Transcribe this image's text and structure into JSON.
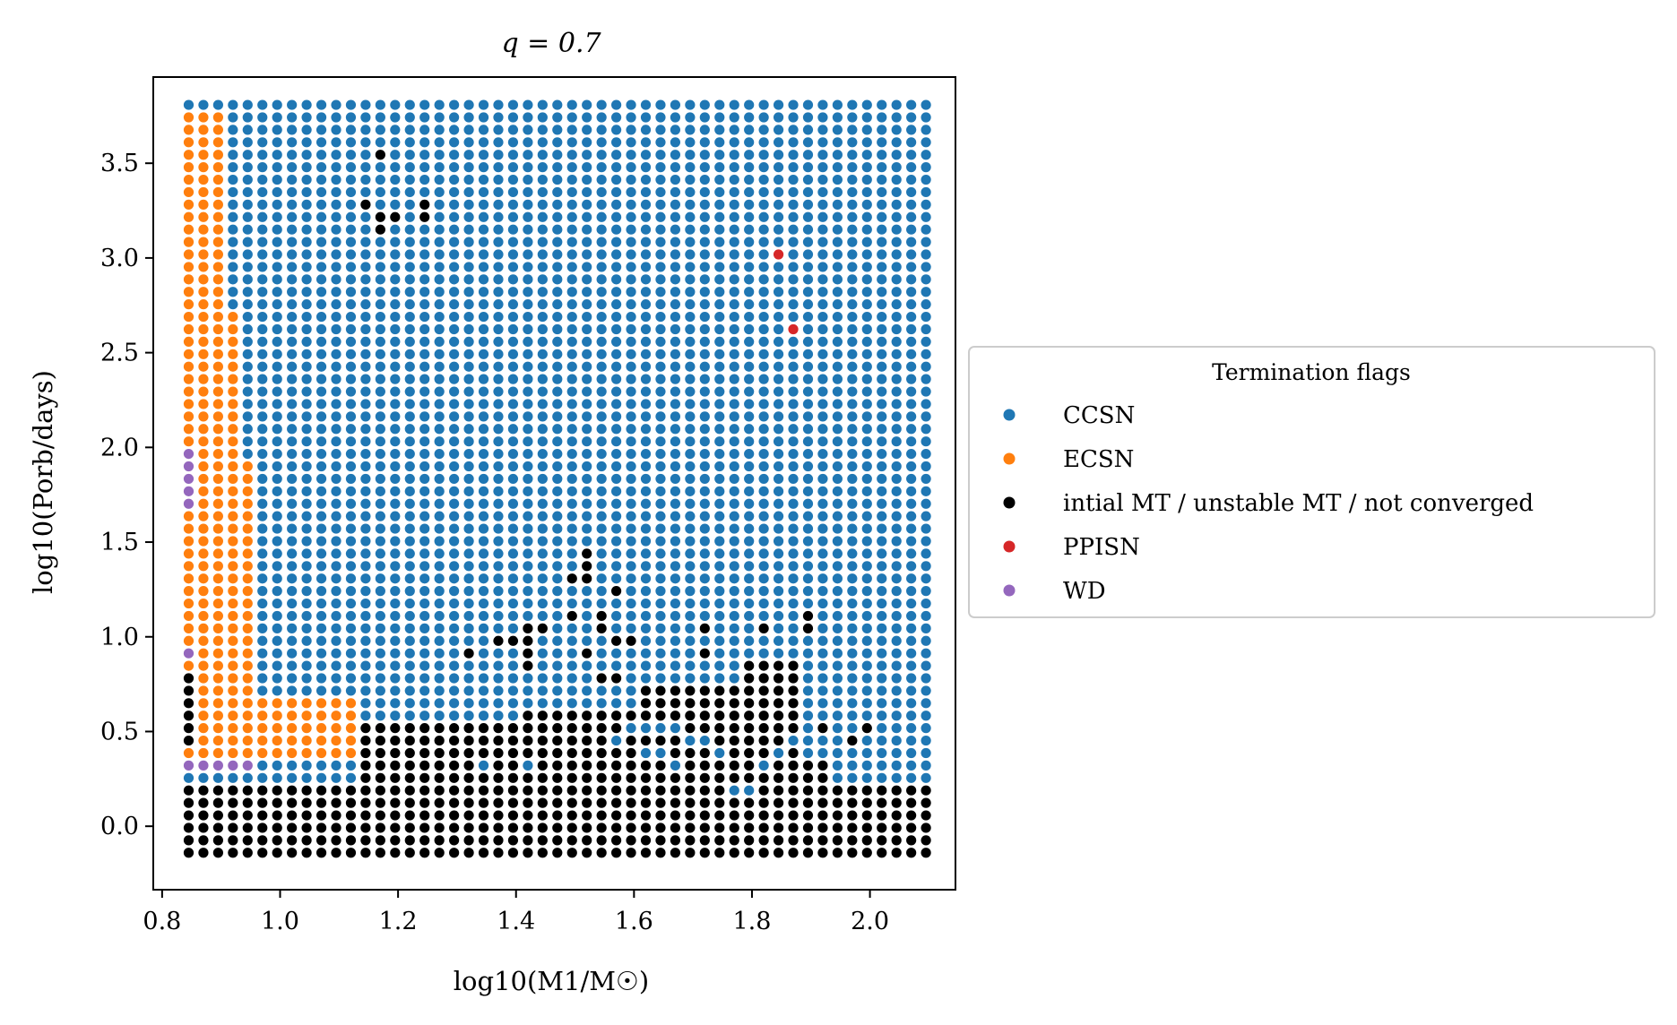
{
  "chart_data": {
    "type": "scatter",
    "title": "q = 0.7",
    "xlabel": "log10(M1/M☉)",
    "ylabel": "log10(Porb/days)",
    "xlim": [
      0.785,
      2.145
    ],
    "ylim": [
      -0.335,
      3.955
    ],
    "x_ticks": [
      0.8,
      1.0,
      1.2,
      1.4,
      1.6,
      1.8,
      2.0
    ],
    "x_tick_labels": [
      "0.8",
      "1.0",
      "1.2",
      "1.4",
      "1.6",
      "1.8",
      "2.0"
    ],
    "y_ticks": [
      0.0,
      0.5,
      1.0,
      1.5,
      2.0,
      2.5,
      3.0,
      3.5
    ],
    "y_tick_labels": [
      "0.0",
      "0.5",
      "1.0",
      "1.5",
      "2.0",
      "2.5",
      "3.0",
      "3.5"
    ],
    "grid": false,
    "legend": {
      "title": "Termination flags",
      "placement": "outside-right",
      "entries": [
        {
          "key": "CCSN",
          "label": "CCSN",
          "color": "#1f77b4"
        },
        {
          "key": "ECSN",
          "label": "ECSN",
          "color": "#ff7f0e"
        },
        {
          "key": "MT",
          "label": "intial MT / unstable MT / not converged",
          "color": "#000000"
        },
        {
          "key": "PPISN",
          "label": "PPISN",
          "color": "#d62728"
        },
        {
          "key": "WD",
          "label": "WD",
          "color": "#9467bd"
        }
      ]
    },
    "grid_spec": {
      "x_start": 0.845,
      "x_step": 0.025,
      "x_count": 51,
      "y_start": -0.14,
      "y_step": 0.0658,
      "y_count": 61,
      "default_flag": "CCSN",
      "note": "log-uniform grid of (log10 M1, log10 Porb)"
    },
    "region_rules": [
      {
        "flag": "MT",
        "where": "y <= 0.24"
      },
      {
        "flag": "MT",
        "where": "x in [1.13,1.28] and y <= 0.52"
      },
      {
        "flag": "MT",
        "where": "x in [1.28,1.55] and y <= 0.57"
      },
      {
        "flag": "MT",
        "where": "x in [1.42,1.60] and y <= 0.64"
      },
      {
        "flag": "MT",
        "where": "x in [1.60,1.78] and y <= 0.75"
      },
      {
        "flag": "MT",
        "where": "x in [1.78,1.88] and y <= 0.85"
      },
      {
        "flag": "MT",
        "where": "x in [1.88,1.92] and y <= 0.35"
      },
      {
        "flag": "MT",
        "where": "x in [1.92,2.09] and y <= 0.24"
      },
      {
        "flag": "ECSN",
        "where": "x < 0.87 and y in [0.35,3.80]"
      },
      {
        "flag": "ECSN",
        "where": "x in [0.87,0.90] and y in [0.35,3.80]"
      },
      {
        "flag": "ECSN",
        "where": "x in [0.90,0.92] and y in [0.40,2.75]"
      },
      {
        "flag": "ECSN",
        "where": "x in [0.92,0.95] and y in [0.30,1.95]"
      },
      {
        "flag": "ECSN",
        "where": "x in [0.95,1.12] and y in [0.33,0.68]"
      },
      {
        "flag": "MT",
        "where": "x < 0.87 and y in [0.40,0.80]"
      },
      {
        "flag": "WD",
        "where": "x < 0.87 and y in [0.85,0.95]"
      },
      {
        "flag": "WD",
        "where": "x < 0.87 and y in [1.70,2.00]"
      },
      {
        "flag": "WD",
        "where": "x in [0.845,0.96] and y in [0.28,0.36]"
      }
    ],
    "series": [
      {
        "name": "PPISN",
        "color": "#d62728",
        "points": [
          [
            1.855,
            3.0
          ],
          [
            1.88,
            2.64
          ]
        ]
      },
      {
        "name": "MT",
        "color": "#000000",
        "points": [
          [
            1.17,
            3.57
          ],
          [
            1.145,
            3.28
          ],
          [
            1.17,
            3.21
          ],
          [
            1.17,
            3.14
          ],
          [
            1.195,
            3.21
          ],
          [
            1.245,
            3.28
          ],
          [
            1.245,
            3.21
          ],
          [
            1.32,
            0.93
          ],
          [
            1.37,
            1.0
          ],
          [
            1.395,
            1.0
          ],
          [
            1.42,
            1.0
          ],
          [
            1.42,
            0.93
          ],
          [
            1.42,
            1.07
          ],
          [
            1.445,
            1.07
          ],
          [
            1.42,
            0.86
          ],
          [
            1.495,
            1.28
          ],
          [
            1.52,
            1.28
          ],
          [
            1.52,
            1.36
          ],
          [
            1.52,
            1.43
          ],
          [
            1.495,
            1.14
          ],
          [
            1.545,
            1.14
          ],
          [
            1.57,
            1.21
          ],
          [
            1.52,
            0.93
          ],
          [
            1.545,
            1.07
          ],
          [
            1.57,
            1.0
          ],
          [
            1.595,
            1.0
          ],
          [
            1.545,
            0.79
          ],
          [
            1.57,
            0.79
          ],
          [
            1.72,
            1.07
          ],
          [
            1.72,
            0.93
          ],
          [
            1.82,
            1.07
          ],
          [
            1.9,
            1.14
          ],
          [
            1.9,
            1.07
          ],
          [
            1.93,
            0.5
          ],
          [
            1.98,
            0.43
          ],
          [
            2.005,
            0.5
          ]
        ]
      },
      {
        "name": "CCSN_islands",
        "color": "#1f77b4",
        "points": [
          [
            1.345,
            0.29
          ],
          [
            1.42,
            0.29
          ],
          [
            1.57,
            0.43
          ],
          [
            1.595,
            0.5
          ],
          [
            1.62,
            0.5
          ],
          [
            1.645,
            0.5
          ],
          [
            1.67,
            0.5
          ],
          [
            1.695,
            0.43
          ],
          [
            1.72,
            0.43
          ],
          [
            1.745,
            0.36
          ],
          [
            1.77,
            0.22
          ],
          [
            1.795,
            0.22
          ],
          [
            1.62,
            0.36
          ],
          [
            1.645,
            0.36
          ],
          [
            1.67,
            0.29
          ],
          [
            1.82,
            0.29
          ],
          [
            1.845,
            0.36
          ],
          [
            1.87,
            0.43
          ]
        ]
      }
    ]
  }
}
